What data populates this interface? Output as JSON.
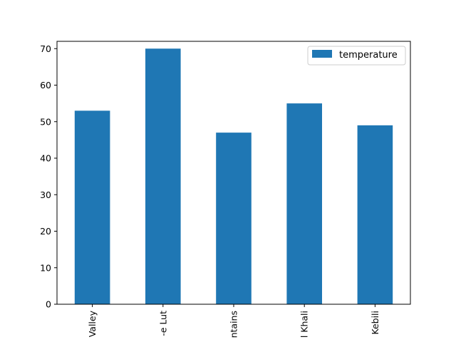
{
  "chart_data": {
    "type": "bar",
    "categories": [
      "Valley",
      "-e Lut",
      "ntains",
      "l Khali",
      "Kebili"
    ],
    "series": [
      {
        "name": "temperature",
        "values": [
          53,
          70,
          47,
          55,
          49
        ]
      }
    ],
    "ylim": [
      0,
      72
    ],
    "yticks": [
      0,
      10,
      20,
      30,
      40,
      50,
      60,
      70
    ],
    "legend_position": "top-right",
    "grid": false,
    "bar_color": "#1f77b4"
  }
}
